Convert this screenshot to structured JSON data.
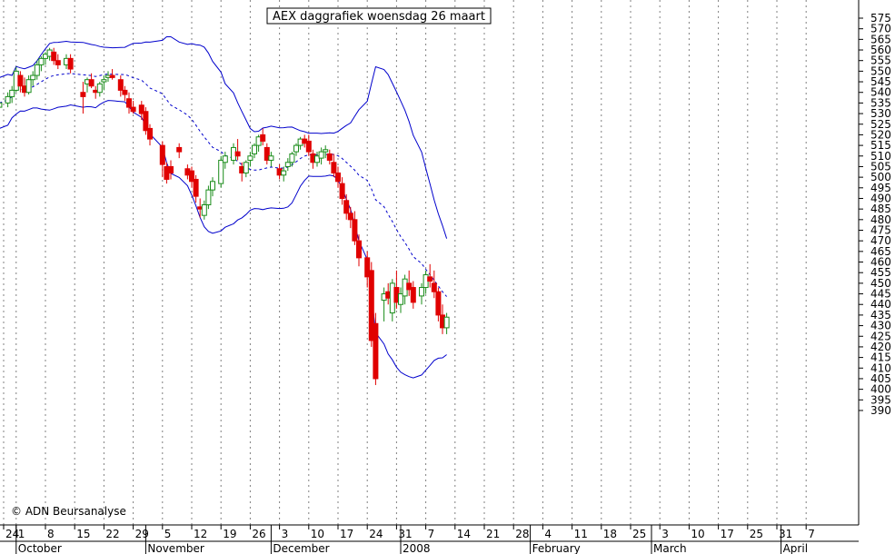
{
  "chart_data": {
    "type": "candlestick",
    "title": "AEX daggrafiek woensdag 26 maart",
    "copyright": "© ADN Beursanalyse",
    "ylim": [
      385,
      580
    ],
    "y_ticks": [
      390,
      395,
      400,
      405,
      410,
      415,
      420,
      425,
      430,
      435,
      440,
      445,
      450,
      455,
      460,
      465,
      470,
      475,
      480,
      485,
      490,
      495,
      500,
      505,
      510,
      515,
      520,
      525,
      530,
      535,
      540,
      545,
      550,
      555,
      560,
      565,
      570,
      575
    ],
    "x_range_days": [
      -4,
      101
    ],
    "day_ticks": [
      {
        "d": -3,
        "label": "24"
      },
      {
        "d": 0,
        "label": "1"
      },
      {
        "d": 7,
        "label": "8"
      },
      {
        "d": 14,
        "label": "15"
      },
      {
        "d": 21,
        "label": "22"
      },
      {
        "d": 28,
        "label": "29"
      },
      {
        "d": 35,
        "label": "5"
      },
      {
        "d": 42,
        "label": "12"
      },
      {
        "d": 49,
        "label": "19"
      },
      {
        "d": 56,
        "label": "26"
      },
      {
        "d": 63,
        "label": "3"
      },
      {
        "d": 70,
        "label": "10"
      },
      {
        "d": 77,
        "label": "17"
      },
      {
        "d": 84,
        "label": "24"
      },
      {
        "d": 91,
        "label": "31"
      },
      {
        "d": 98,
        "label": "7"
      },
      {
        "d": 105,
        "label": "14"
      },
      {
        "d": 112,
        "label": "21"
      },
      {
        "d": 119,
        "label": "28"
      },
      {
        "d": 126,
        "label": "4"
      },
      {
        "d": 133,
        "label": "11"
      },
      {
        "d": 140,
        "label": "18"
      },
      {
        "d": 147,
        "label": "25"
      },
      {
        "d": 154,
        "label": "3"
      },
      {
        "d": 161,
        "label": "10"
      },
      {
        "d": 168,
        "label": "17"
      },
      {
        "d": 175,
        "label": "25"
      },
      {
        "d": 182,
        "label": "31"
      },
      {
        "d": 189,
        "label": "7"
      }
    ],
    "months": [
      {
        "d": 0,
        "label": "October"
      },
      {
        "d": 31,
        "label": "November"
      },
      {
        "d": 61,
        "label": "December"
      },
      {
        "d": 92,
        "label": "2008"
      },
      {
        "d": 123,
        "label": "February"
      },
      {
        "d": 152,
        "label": "March"
      },
      {
        "d": 183,
        "label": "April"
      }
    ],
    "candles": [
      [
        -4,
        533,
        536,
        531,
        535
      ],
      [
        -2,
        535,
        540,
        533,
        538
      ],
      [
        -1,
        538,
        543,
        535,
        541
      ],
      [
        0,
        541,
        552,
        540,
        550
      ],
      [
        1,
        548,
        550,
        540,
        543
      ],
      [
        2,
        543,
        547,
        538,
        540
      ],
      [
        3,
        540,
        548,
        539,
        546
      ],
      [
        4,
        546,
        550,
        543,
        548
      ],
      [
        5,
        548,
        555,
        546,
        553
      ],
      [
        6,
        553,
        557,
        550,
        556
      ],
      [
        7,
        556,
        559,
        553,
        558
      ],
      [
        8,
        557,
        561,
        555,
        560
      ],
      [
        9,
        559,
        561,
        553,
        555
      ],
      [
        10,
        555,
        558,
        551,
        553
      ],
      [
        12,
        553,
        558,
        551,
        556
      ],
      [
        13,
        556,
        558,
        549,
        551
      ],
      [
        16,
        540,
        545,
        530,
        538
      ],
      [
        17,
        544,
        547,
        540,
        546
      ],
      [
        18,
        546,
        549,
        542,
        543
      ],
      [
        19,
        541,
        543,
        537,
        540
      ],
      [
        20,
        540,
        545,
        538,
        544
      ],
      [
        21,
        545,
        548,
        541,
        546
      ],
      [
        22,
        547,
        550,
        545,
        548
      ],
      [
        23,
        548,
        551,
        546,
        547
      ],
      [
        25,
        546,
        548,
        538,
        541
      ],
      [
        26,
        541,
        543,
        536,
        539
      ],
      [
        27,
        537,
        540,
        530,
        533
      ],
      [
        28,
        533,
        536,
        530,
        531
      ],
      [
        30,
        534,
        536,
        527,
        530
      ],
      [
        31,
        531,
        533,
        520,
        522
      ],
      [
        32,
        523,
        525,
        515,
        518
      ],
      [
        35,
        515,
        517,
        500,
        506
      ],
      [
        36,
        505,
        507,
        497,
        499
      ],
      [
        37,
        505,
        508,
        499,
        502
      ],
      [
        39,
        514,
        516,
        509,
        512
      ],
      [
        41,
        504,
        506,
        499,
        501
      ],
      [
        42,
        503,
        505,
        495,
        498
      ],
      [
        43,
        499,
        501,
        488,
        491
      ],
      [
        44,
        486,
        490,
        481,
        485
      ],
      [
        45,
        482,
        489,
        480,
        487
      ],
      [
        46,
        487,
        496,
        485,
        494
      ],
      [
        47,
        494,
        500,
        491,
        498
      ],
      [
        49,
        497,
        510,
        495,
        508
      ],
      [
        50,
        507,
        512,
        504,
        510
      ],
      [
        52,
        508,
        516,
        506,
        514
      ],
      [
        53,
        512,
        518,
        508,
        510
      ],
      [
        54,
        505,
        507,
        498,
        502
      ],
      [
        55,
        502,
        508,
        500,
        507
      ],
      [
        56,
        508,
        512,
        505,
        510
      ],
      [
        57,
        511,
        516,
        509,
        515
      ],
      [
        58,
        515,
        520,
        512,
        519
      ],
      [
        59,
        520,
        523,
        515,
        517
      ],
      [
        60,
        514,
        516,
        506,
        508
      ],
      [
        61,
        508,
        512,
        505,
        510
      ],
      [
        63,
        504,
        506,
        499,
        501
      ],
      [
        64,
        501,
        505,
        498,
        503
      ],
      [
        65,
        505,
        509,
        503,
        507
      ],
      [
        66,
        507,
        512,
        505,
        511
      ],
      [
        67,
        512,
        516,
        510,
        515
      ],
      [
        68,
        515,
        519,
        513,
        518
      ],
      [
        69,
        518,
        520,
        514,
        516
      ],
      [
        70,
        517,
        520,
        510,
        512
      ],
      [
        71,
        511,
        513,
        504,
        507
      ],
      [
        72,
        507,
        512,
        505,
        510
      ],
      [
        73,
        509,
        514,
        506,
        512
      ],
      [
        74,
        512,
        515,
        509,
        513
      ],
      [
        75,
        511,
        513,
        506,
        508
      ],
      [
        76,
        507,
        511,
        500,
        502
      ],
      [
        77,
        502,
        505,
        495,
        498
      ],
      [
        78,
        497,
        500,
        487,
        490
      ],
      [
        79,
        489,
        492,
        480,
        483
      ],
      [
        80,
        483,
        486,
        476,
        480
      ],
      [
        81,
        480,
        484,
        468,
        470
      ],
      [
        82,
        470,
        473,
        458,
        462
      ],
      [
        84,
        462,
        465,
        448,
        453
      ],
      [
        85,
        456,
        460,
        420,
        423
      ],
      [
        86,
        431,
        436,
        402,
        405
      ],
      [
        88,
        442,
        448,
        432,
        445
      ],
      [
        89,
        446,
        450,
        440,
        443
      ],
      [
        90,
        436,
        452,
        432,
        450
      ],
      [
        91,
        448,
        456,
        438,
        441
      ],
      [
        92,
        440,
        448,
        436,
        445
      ],
      [
        93,
        444,
        454,
        440,
        452
      ],
      [
        94,
        450,
        456,
        444,
        447
      ],
      [
        95,
        448,
        451,
        438,
        441
      ],
      [
        97,
        444,
        450,
        440,
        448
      ],
      [
        98,
        448,
        456,
        445,
        454
      ],
      [
        99,
        453,
        459,
        448,
        451
      ],
      [
        100,
        450,
        456,
        443,
        446
      ],
      [
        101,
        446,
        448,
        432,
        435
      ],
      [
        102,
        435,
        440,
        426,
        429
      ],
      [
        103,
        429,
        436,
        426,
        434
      ]
    ],
    "colors": {
      "up": "#1a8c1a",
      "down": "#e00000",
      "band": "#0000cc",
      "grid": "#808080",
      "axis": "#000000"
    }
  }
}
